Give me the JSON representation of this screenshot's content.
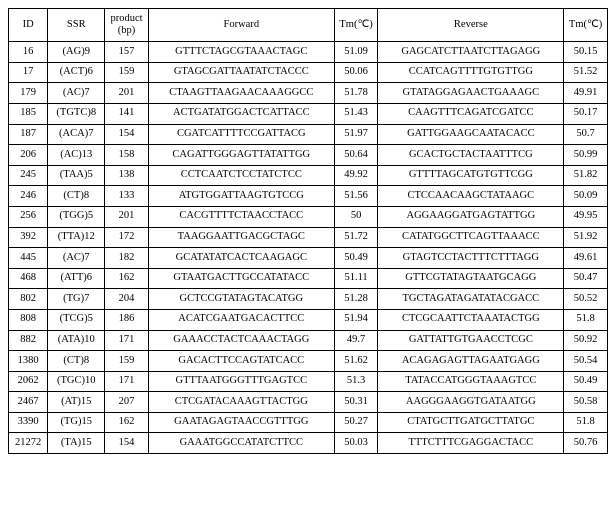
{
  "table": {
    "columns": [
      "ID",
      "SSR",
      "product\n(bp)",
      "Forward",
      "Tm(℃)",
      "Reverse",
      "Tm(℃)"
    ],
    "rows": [
      [
        "16",
        "(AG)9",
        "157",
        "GTTTCTAGCGTAAACTAGC",
        "51.09",
        "GAGCATCTTAATCTTAGAGG",
        "50.15"
      ],
      [
        "17",
        "(ACT)6",
        "159",
        "GTAGCGATTAATATCTACCC",
        "50.06",
        "CCATCAGTTTTGTGTTGG",
        "51.52"
      ],
      [
        "179",
        "(AC)7",
        "201",
        "CTAAGTTAAGAACAAAGGCC",
        "51.78",
        "GTATAGGAGAACTGAAAGC",
        "49.91"
      ],
      [
        "185",
        "(TGTC)8",
        "141",
        "ACTGATATGGACTCATTACC",
        "51.43",
        "CAAGTTTCAGATCGATCC",
        "50.17"
      ],
      [
        "187",
        "(ACA)7",
        "154",
        "CGATCATTTTCCGATTACG",
        "51.97",
        "GATTGGAAGCAATACACC",
        "50.7"
      ],
      [
        "206",
        "(AC)13",
        "158",
        "CAGATTGGGAGTTATATTGG",
        "50.64",
        "GCACTGCTACTAATTTCG",
        "50.99"
      ],
      [
        "245",
        "(TAA)5",
        "138",
        "CCTCAATCTCCTATCTCC",
        "49.92",
        "GTTTTAGCATGTGTTCGG",
        "51.82"
      ],
      [
        "246",
        "(CT)8",
        "133",
        "ATGTGGATTAAGTGTCCG",
        "51.56",
        "CTCCAACAAGCTATAAGC",
        "50.09"
      ],
      [
        "256",
        "(TGG)5",
        "201",
        "CACGTTTTCTAACCTACC",
        "50",
        "AGGAAGGATGAGTATTGG",
        "49.95"
      ],
      [
        "392",
        "(TTA)12",
        "172",
        "TAAGGAATTGACGCTAGC",
        "51.72",
        "CATATGGCTTCAGTTAAACC",
        "51.92"
      ],
      [
        "445",
        "(AC)7",
        "182",
        "GCATATATCACTCAAGAGC",
        "50.49",
        "GTAGTCCTACTTTCTTTAGG",
        "49.61"
      ],
      [
        "468",
        "(ATT)6",
        "162",
        "GTAATGACTTGCCATATACC",
        "51.11",
        "GTTCGTATAGTAATGCAGG",
        "50.47"
      ],
      [
        "802",
        "(TG)7",
        "204",
        "GCTCCGTATAGTACATGG",
        "51.28",
        "TGCTAGATAGATATACGACC",
        "50.52"
      ],
      [
        "808",
        "(TCG)5",
        "186",
        "ACATCGAATGACACTTCC",
        "51.94",
        "CTCGCAATTCTAAATACTGG",
        "51.8"
      ],
      [
        "882",
        "(ATA)10",
        "171",
        "GAAACCTACTCAAACTAGG",
        "49.7",
        "GATTATTGTGAACCTCGC",
        "50.92"
      ],
      [
        "1380",
        "(CT)8",
        "159",
        "GACACTTCCAGTATCACC",
        "51.62",
        "ACAGAGAGTTAGAATGAGG",
        "50.54"
      ],
      [
        "2062",
        "(TGC)10",
        "171",
        "GTTTAATGGGTTTGAGTCC",
        "51.3",
        "TATACCATGGGTAAAGTCC",
        "50.49"
      ],
      [
        "2467",
        "(AT)15",
        "207",
        "CTCGATACAAAGTTACTGG",
        "50.31",
        "AAGGGAAGGTGATAATGG",
        "50.58"
      ],
      [
        "3390",
        "(TG)15",
        "162",
        "GAATAGAGTAACCGTTTGG",
        "50.27",
        "CTATGCTTGATGCTTATGC",
        "51.8"
      ],
      [
        "21272",
        "(TA)15",
        "154",
        "GAAATGGCCATATCTTCC",
        "50.03",
        "TTTCTTTCGAGGACTACC",
        "50.76"
      ]
    ]
  }
}
